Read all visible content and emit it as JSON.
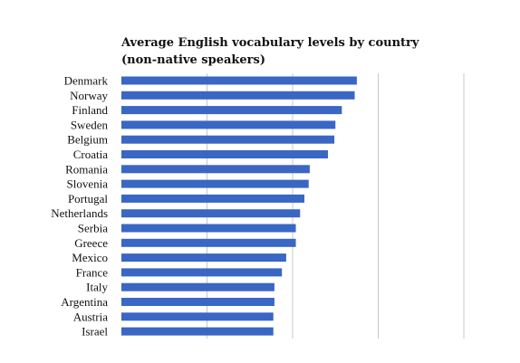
{
  "chart_data": {
    "type": "bar",
    "orientation": "horizontal",
    "title_lines": [
      "Average English vocabulary levels by country",
      "(non-native speakers)"
    ],
    "categories": [
      "Denmark",
      "Norway",
      "Finland",
      "Sweden",
      "Belgium",
      "Croatia",
      "Romania",
      "Slovenia",
      "Portugal",
      "Netherlands",
      "Serbia",
      "Greece",
      "Mexico",
      "France",
      "Italy",
      "Argentina",
      "Austria",
      "Israel"
    ],
    "values": [
      11000,
      10900,
      10300,
      10000,
      9950,
      9650,
      8800,
      8750,
      8550,
      8350,
      8150,
      8150,
      7700,
      7500,
      7150,
      7150,
      7100,
      7100
    ],
    "xlim": [
      0,
      16000
    ],
    "grid": true,
    "bar_color": "#3a66c4",
    "xlabel": "",
    "ylabel": ""
  }
}
